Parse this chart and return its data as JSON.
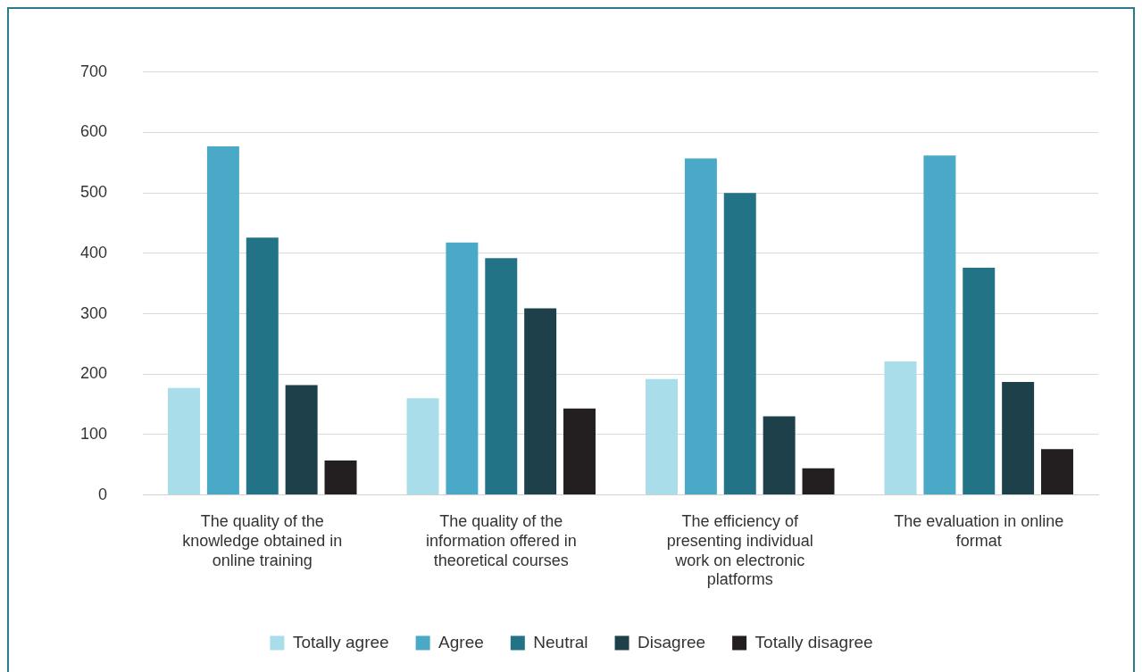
{
  "chart_data": {
    "type": "bar",
    "categories": [
      "The quality of the knowledge obtained in online training",
      "The quality of the information offered in theoretical courses",
      "The efficiency of presenting individual work on electronic platforms",
      "The evaluation in online format"
    ],
    "series": [
      {
        "name": "Totally agree",
        "color": "#a8dde9",
        "values": [
          177,
          160,
          192,
          221
        ]
      },
      {
        "name": "Agree",
        "color": "#4aa9c6",
        "values": [
          577,
          418,
          557,
          562
        ]
      },
      {
        "name": "Neutral",
        "color": "#237387",
        "values": [
          426,
          392,
          500,
          376
        ]
      },
      {
        "name": "Disagree",
        "color": "#1e404a",
        "values": [
          182,
          309,
          130,
          187
        ]
      },
      {
        "name": "Totally disagree",
        "color": "#231f20",
        "values": [
          57,
          143,
          44,
          76
        ]
      }
    ],
    "ylim": [
      0,
      700
    ],
    "yticks": [
      0,
      100,
      200,
      300,
      400,
      500,
      600,
      700
    ],
    "grid": "y",
    "legend": "bottom"
  }
}
